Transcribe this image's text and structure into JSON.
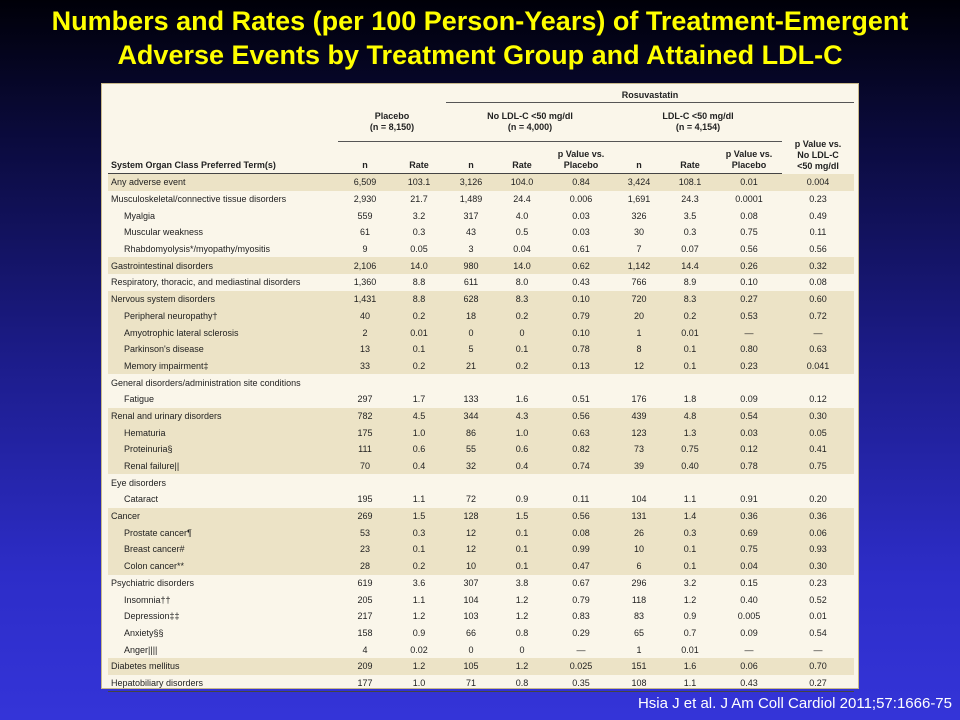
{
  "title_line1": "Numbers and Rates (per 100 Person-Years) of Treatment-Emergent",
  "title_line2": "Adverse Events by Treatment Group and Attained LDL-C",
  "table": {
    "group_header": "Rosuvastatin",
    "placebo_header": "Placebo\n(n = 8,150)",
    "no_ldl_header": "No LDL-C <50 mg/dl\n(n = 4,000)",
    "ldl_header": "LDL-C <50 mg/dl\n(n = 4,154)",
    "pval_vs_no_header": "p Value vs.\nNo LDL-C\n<50 mg/dl",
    "col_term": "System Organ Class Preferred Term(s)",
    "col_n": "n",
    "col_rate": "Rate",
    "col_pval_placebo": "p Value vs.\nPlacebo",
    "rows": [
      {
        "term": "Any adverse event",
        "indent": false,
        "shade": true,
        "c": [
          "6,509",
          "103.1",
          "3,126",
          "104.0",
          "0.84",
          "3,424",
          "108.1",
          "0.01",
          "0.004"
        ]
      },
      {
        "term": "Musculoskeletal/connective tissue disorders",
        "indent": false,
        "shade": false,
        "c": [
          "2,930",
          "21.7",
          "1,489",
          "24.4",
          "0.006",
          "1,691",
          "24.3",
          "0.0001",
          "0.23"
        ]
      },
      {
        "term": "Myalgia",
        "indent": true,
        "shade": false,
        "c": [
          "559",
          "3.2",
          "317",
          "4.0",
          "0.03",
          "326",
          "3.5",
          "0.08",
          "0.49"
        ]
      },
      {
        "term": "Muscular weakness",
        "indent": true,
        "shade": false,
        "c": [
          "61",
          "0.3",
          "43",
          "0.5",
          "0.03",
          "30",
          "0.3",
          "0.75",
          "0.11"
        ]
      },
      {
        "term": "Rhabdomyolysis*/myopathy/myositis",
        "indent": true,
        "shade": false,
        "c": [
          "9",
          "0.05",
          "3",
          "0.04",
          "0.61",
          "7",
          "0.07",
          "0.56",
          "0.56"
        ]
      },
      {
        "term": "Gastrointestinal disorders",
        "indent": false,
        "shade": true,
        "c": [
          "2,106",
          "14.0",
          "980",
          "14.0",
          "0.62",
          "1,142",
          "14.4",
          "0.26",
          "0.32"
        ]
      },
      {
        "term": "Respiratory, thoracic, and mediastinal disorders",
        "indent": false,
        "shade": false,
        "c": [
          "1,360",
          "8.8",
          "611",
          "8.0",
          "0.43",
          "766",
          "8.9",
          "0.10",
          "0.08"
        ]
      },
      {
        "term": "Nervous system disorders",
        "indent": false,
        "shade": true,
        "c": [
          "1,431",
          "8.8",
          "628",
          "8.3",
          "0.10",
          "720",
          "8.3",
          "0.27",
          "0.60"
        ]
      },
      {
        "term": "Peripheral neuropathy†",
        "indent": true,
        "shade": true,
        "c": [
          "40",
          "0.2",
          "18",
          "0.2",
          "0.79",
          "20",
          "0.2",
          "0.53",
          "0.72"
        ]
      },
      {
        "term": "Amyotrophic lateral sclerosis",
        "indent": true,
        "shade": true,
        "c": [
          "2",
          "0.01",
          "0",
          "0",
          "0.10",
          "1",
          "0.01",
          "—",
          "—"
        ]
      },
      {
        "term": "Parkinson's disease",
        "indent": true,
        "shade": true,
        "c": [
          "13",
          "0.1",
          "5",
          "0.1",
          "0.78",
          "8",
          "0.1",
          "0.80",
          "0.63"
        ]
      },
      {
        "term": "Memory impairment‡",
        "indent": true,
        "shade": true,
        "c": [
          "33",
          "0.2",
          "21",
          "0.2",
          "0.13",
          "12",
          "0.1",
          "0.23",
          "0.041"
        ]
      },
      {
        "term": "General disorders/administration site conditions",
        "indent": false,
        "shade": false,
        "c": [
          "",
          "",
          "",
          "",
          "",
          "",
          "",
          "",
          ""
        ]
      },
      {
        "term": "Fatigue",
        "indent": true,
        "shade": false,
        "c": [
          "297",
          "1.7",
          "133",
          "1.6",
          "0.51",
          "176",
          "1.8",
          "0.09",
          "0.12"
        ]
      },
      {
        "term": "Renal and urinary disorders",
        "indent": false,
        "shade": true,
        "c": [
          "782",
          "4.5",
          "344",
          "4.3",
          "0.56",
          "439",
          "4.8",
          "0.54",
          "0.30"
        ]
      },
      {
        "term": "Hematuria",
        "indent": true,
        "shade": true,
        "c": [
          "175",
          "1.0",
          "86",
          "1.0",
          "0.63",
          "123",
          "1.3",
          "0.03",
          "0.05"
        ]
      },
      {
        "term": "Proteinuria§",
        "indent": true,
        "shade": true,
        "c": [
          "111",
          "0.6",
          "55",
          "0.6",
          "0.82",
          "73",
          "0.75",
          "0.12",
          "0.41"
        ]
      },
      {
        "term": "Renal failure||",
        "indent": true,
        "shade": true,
        "c": [
          "70",
          "0.4",
          "32",
          "0.4",
          "0.74",
          "39",
          "0.40",
          "0.78",
          "0.75"
        ]
      },
      {
        "term": "Eye disorders",
        "indent": false,
        "shade": false,
        "c": [
          "",
          "",
          "",
          "",
          "",
          "",
          "",
          "",
          ""
        ]
      },
      {
        "term": "Cataract",
        "indent": true,
        "shade": false,
        "c": [
          "195",
          "1.1",
          "72",
          "0.9",
          "0.11",
          "104",
          "1.1",
          "0.91",
          "0.20"
        ]
      },
      {
        "term": "Cancer",
        "indent": false,
        "shade": true,
        "c": [
          "269",
          "1.5",
          "128",
          "1.5",
          "0.56",
          "131",
          "1.4",
          "0.36",
          "0.36"
        ]
      },
      {
        "term": "Prostate cancer¶",
        "indent": true,
        "shade": true,
        "c": [
          "53",
          "0.3",
          "12",
          "0.1",
          "0.08",
          "26",
          "0.3",
          "0.69",
          "0.06"
        ]
      },
      {
        "term": "Breast cancer#",
        "indent": true,
        "shade": true,
        "c": [
          "23",
          "0.1",
          "12",
          "0.1",
          "0.99",
          "10",
          "0.1",
          "0.75",
          "0.93"
        ]
      },
      {
        "term": "Colon cancer**",
        "indent": true,
        "shade": true,
        "c": [
          "28",
          "0.2",
          "10",
          "0.1",
          "0.47",
          "6",
          "0.1",
          "0.04",
          "0.30"
        ]
      },
      {
        "term": "Psychiatric disorders",
        "indent": false,
        "shade": false,
        "c": [
          "619",
          "3.6",
          "307",
          "3.8",
          "0.67",
          "296",
          "3.2",
          "0.15",
          "0.23"
        ]
      },
      {
        "term": "Insomnia††",
        "indent": true,
        "shade": false,
        "c": [
          "205",
          "1.1",
          "104",
          "1.2",
          "0.79",
          "118",
          "1.2",
          "0.40",
          "0.52"
        ]
      },
      {
        "term": "Depression‡‡",
        "indent": true,
        "shade": false,
        "c": [
          "217",
          "1.2",
          "103",
          "1.2",
          "0.83",
          "83",
          "0.9",
          "0.005",
          "0.01"
        ]
      },
      {
        "term": "Anxiety§§",
        "indent": true,
        "shade": false,
        "c": [
          "158",
          "0.9",
          "66",
          "0.8",
          "0.29",
          "65",
          "0.7",
          "0.09",
          "0.54"
        ]
      },
      {
        "term": "Anger||||",
        "indent": true,
        "shade": false,
        "c": [
          "4",
          "0.02",
          "0",
          "0",
          "—",
          "1",
          "0.01",
          "—",
          "—"
        ]
      },
      {
        "term": "Diabetes mellitus",
        "indent": false,
        "shade": true,
        "c": [
          "209",
          "1.2",
          "105",
          "1.2",
          "0.025",
          "151",
          "1.6",
          "0.06",
          "0.70"
        ]
      },
      {
        "term": "Hepatobiliary disorders",
        "indent": false,
        "shade": false,
        "c": [
          "177",
          "1.0",
          "71",
          "0.8",
          "0.35",
          "108",
          "1.1",
          "0.43",
          "0.27"
        ]
      }
    ]
  },
  "citation": "Hsia J et al. J Am Coll Cardiol 2011;57:1666-75"
}
